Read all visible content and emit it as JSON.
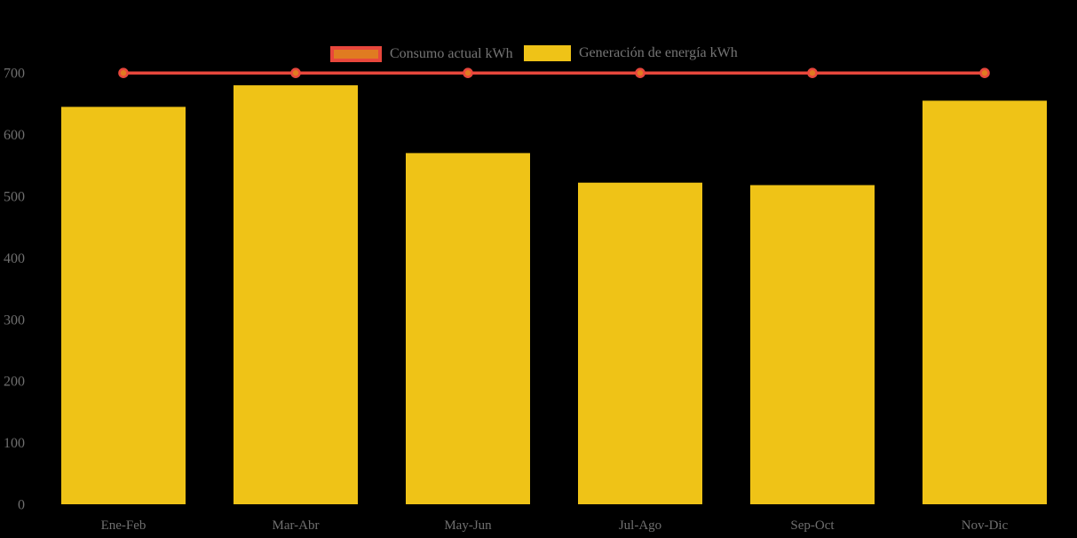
{
  "chart_data": {
    "type": "bar",
    "title": "",
    "categories": [
      "Ene-Feb",
      "Mar-Abr",
      "May-Jun",
      "Jul-Ago",
      "Sep-Oct",
      "Nov-Dic"
    ],
    "series": [
      {
        "name": "Consumo actual kWh",
        "type": "line",
        "values": [
          700,
          700,
          700,
          700,
          700,
          700
        ],
        "line_color": "#E8473C",
        "marker_fill": "#E07B21",
        "marker_stroke": "#E8473C"
      },
      {
        "name": "Generación de energía kWh",
        "type": "bar",
        "values": [
          645,
          680,
          570,
          522,
          518,
          655
        ],
        "bar_color": "#EFC317"
      }
    ],
    "xlabel": "",
    "ylabel": "",
    "ylim": [
      0,
      700
    ],
    "y_ticks": [
      0,
      100,
      200,
      300,
      400,
      500,
      600,
      700
    ],
    "grid": false,
    "legend_position": "top-center",
    "background_color": "#000000",
    "axis_text_color": "#6F6F6F"
  }
}
